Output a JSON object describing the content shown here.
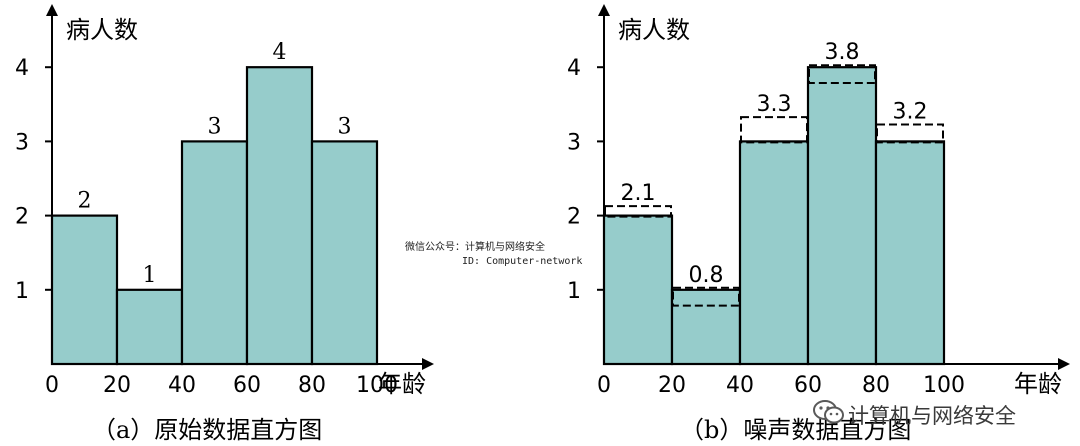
{
  "chart_data": [
    {
      "type": "bar",
      "caption": "（a）原始数据直方图",
      "ylabel": "病人数",
      "xlabel": "年龄",
      "x_ticks": [
        "0",
        "20",
        "40",
        "60",
        "80",
        "100"
      ],
      "y_ticks": [
        "1",
        "2",
        "3",
        "4"
      ],
      "bins": [
        [
          0,
          20
        ],
        [
          20,
          40
        ],
        [
          40,
          60
        ],
        [
          60,
          80
        ],
        [
          80,
          100
        ]
      ],
      "values": [
        2,
        1,
        3,
        4,
        3
      ],
      "value_labels": [
        "2",
        "1",
        "3",
        "4",
        "3"
      ],
      "ylim": [
        0,
        4.9
      ],
      "grid": false,
      "bar_color": "#96cccb"
    },
    {
      "type": "bar",
      "caption": "（b）噪声数据直方图",
      "ylabel": "病人数",
      "xlabel": "年龄",
      "x_ticks": [
        "0",
        "20",
        "40",
        "60",
        "80",
        "100"
      ],
      "y_ticks": [
        "1",
        "2",
        "3",
        "4"
      ],
      "bins": [
        [
          0,
          20
        ],
        [
          20,
          40
        ],
        [
          40,
          60
        ],
        [
          60,
          80
        ],
        [
          80,
          100
        ]
      ],
      "values": [
        2,
        1,
        3,
        4,
        3
      ],
      "noisy_values": [
        2.1,
        0.8,
        3.3,
        3.8,
        3.2
      ],
      "value_labels": [
        "2.1",
        "0.8",
        "3.3",
        "3.8",
        "3.2"
      ],
      "ylim": [
        0,
        4.9
      ],
      "grid": false,
      "bar_color": "#96cccb"
    }
  ],
  "watermark": {
    "line1": "微信公众号：计算机与网络安全",
    "line2": "ID: Computer-network",
    "brand": "计算机与网络安全"
  }
}
